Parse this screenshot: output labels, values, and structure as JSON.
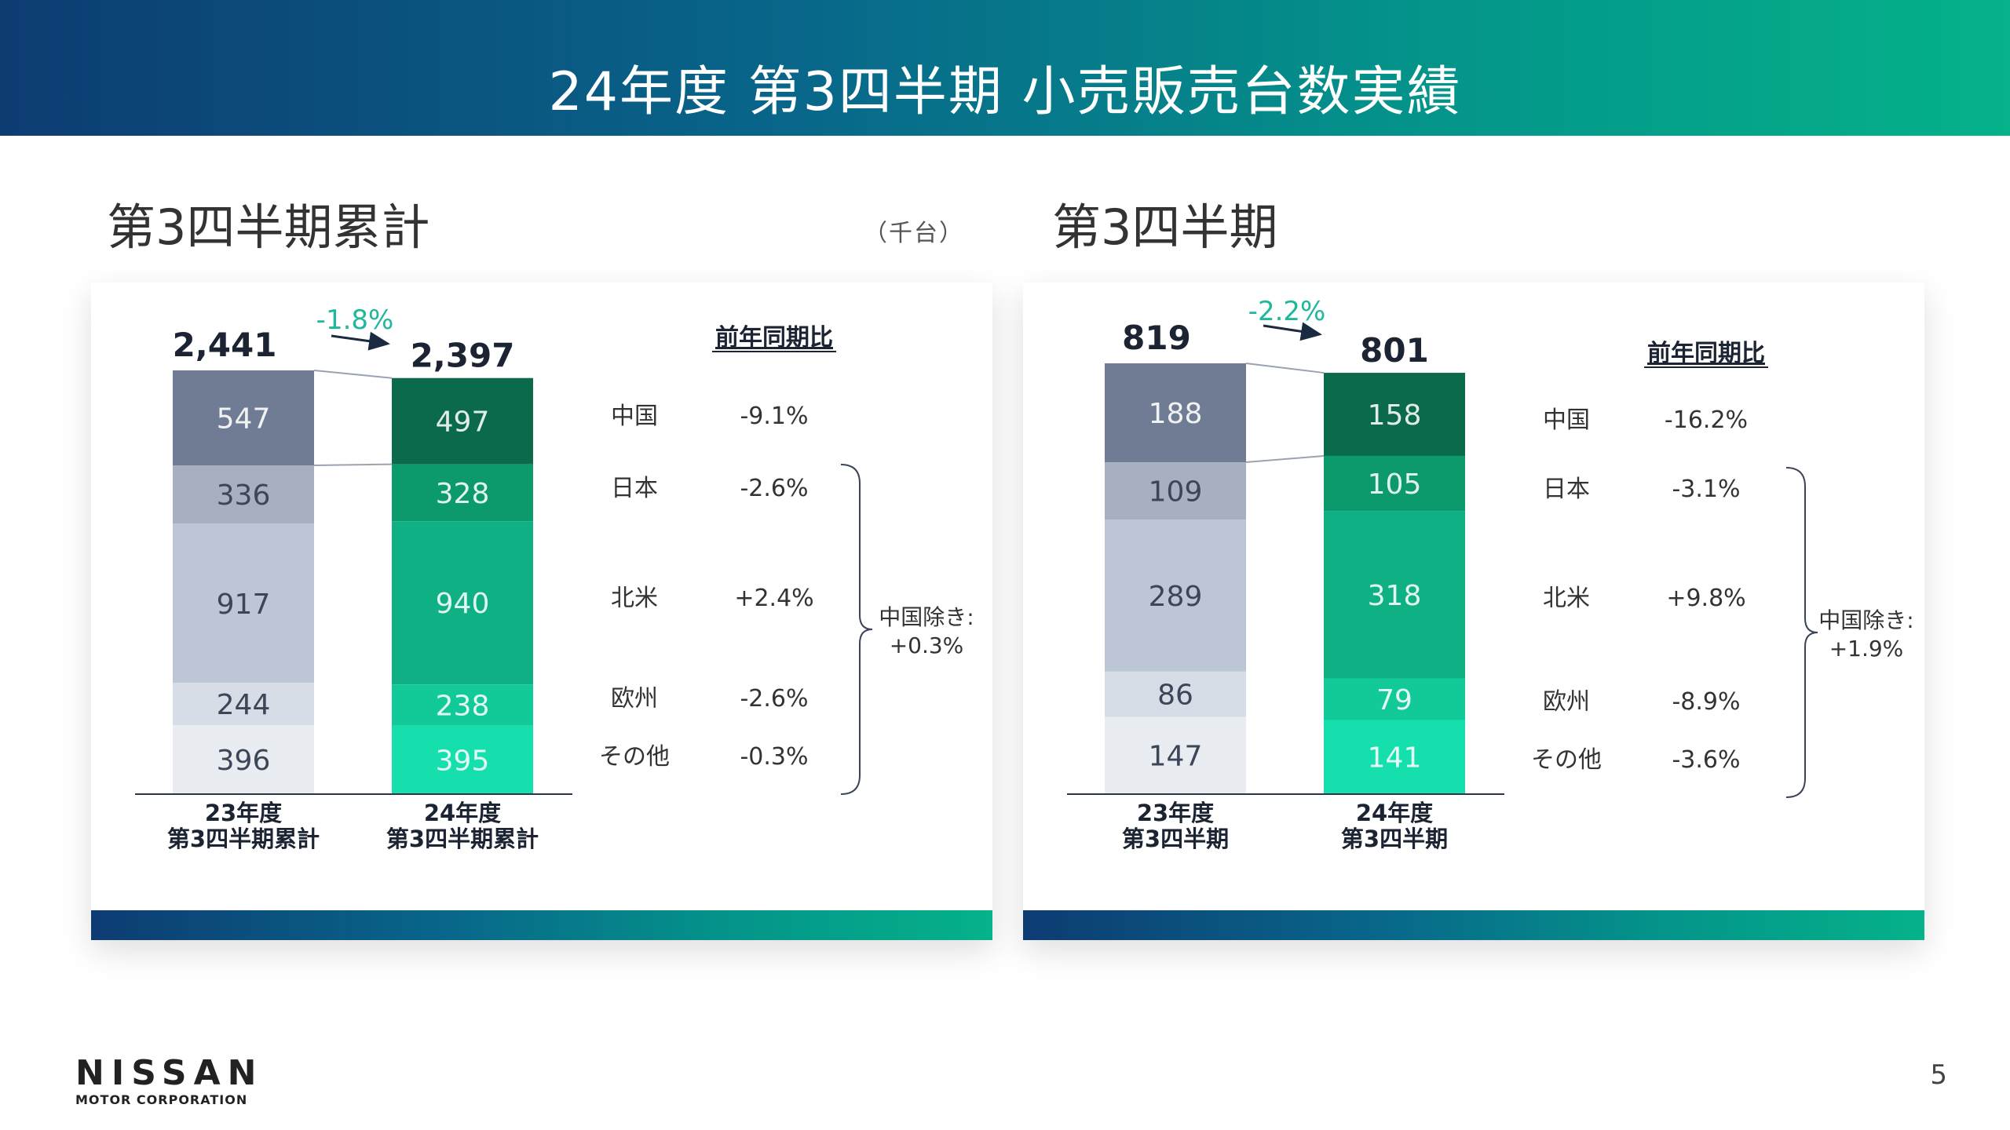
{
  "header": {
    "title": "24年度 第3四半期 小売販売台数実績"
  },
  "unit": "（千台）",
  "page_number": "5",
  "logo": {
    "name": "NISSAN",
    "sub": "MOTOR CORPORATION"
  },
  "colors": {
    "header_gradient": [
      "#0d3c73",
      "#08678a",
      "#04938a",
      "#05b28a"
    ],
    "prev_year_segments": [
      "#6f7c93",
      "#a6b0c1",
      "#bcc6d4",
      "#d6dde6",
      "#e9edf2"
    ],
    "curr_year_segments": [
      "#0b6a4c",
      "#0c9a6c",
      "#0fb083",
      "#12c998",
      "#15e0ad"
    ],
    "change_label": "#1fb89a"
  },
  "panels": {
    "cumulative": {
      "title": "第3四半期累計",
      "yoy_header": "前年同期比",
      "bracket_label_line1": "中国除き:",
      "bracket_label_line2": "+0.3%",
      "rows": [
        {
          "region": "中国",
          "change": "-9.1%"
        },
        {
          "region": "日本",
          "change": "-2.6%"
        },
        {
          "region": "北米",
          "change": "+2.4%"
        },
        {
          "region": "欧州",
          "change": "-2.6%"
        },
        {
          "region": "その他",
          "change": "-0.3%"
        }
      ]
    },
    "quarter": {
      "title": "第3四半期",
      "yoy_header": "前年同期比",
      "bracket_label_line1": "中国除き:",
      "bracket_label_line2": "+1.9%",
      "rows": [
        {
          "region": "中国",
          "change": "-16.2%"
        },
        {
          "region": "日本",
          "change": "-3.1%"
        },
        {
          "region": "北米",
          "change": "+9.8%"
        },
        {
          "region": "欧州",
          "change": "-8.9%"
        },
        {
          "region": "その他",
          "change": "-3.6%"
        }
      ]
    }
  },
  "chart_data": [
    {
      "type": "bar",
      "stacked": true,
      "title": "第3四半期累計",
      "unit": "（千台）",
      "categories": [
        [
          "23年度",
          "第3四半期累計"
        ],
        [
          "24年度",
          "第3四半期累計"
        ]
      ],
      "totals": [
        "2,441",
        "2,397"
      ],
      "total_values": [
        2441,
        2397
      ],
      "change": "-1.8%",
      "series": [
        {
          "name": "中国",
          "values": [
            547,
            497
          ]
        },
        {
          "name": "日本",
          "values": [
            336,
            328
          ]
        },
        {
          "name": "北米",
          "values": [
            917,
            940
          ]
        },
        {
          "name": "欧州",
          "values": [
            244,
            238
          ]
        },
        {
          "name": "その他",
          "values": [
            396,
            395
          ]
        }
      ]
    },
    {
      "type": "bar",
      "stacked": true,
      "title": "第3四半期",
      "categories": [
        [
          "23年度",
          "第3四半期"
        ],
        [
          "24年度",
          "第3四半期"
        ]
      ],
      "totals": [
        "819",
        "801"
      ],
      "total_values": [
        819,
        801
      ],
      "change": "-2.2%",
      "series": [
        {
          "name": "中国",
          "values": [
            188,
            158
          ]
        },
        {
          "name": "日本",
          "values": [
            109,
            105
          ]
        },
        {
          "name": "北米",
          "values": [
            289,
            318
          ]
        },
        {
          "name": "欧州",
          "values": [
            86,
            79
          ]
        },
        {
          "name": "その他",
          "values": [
            147,
            141
          ]
        }
      ]
    }
  ]
}
